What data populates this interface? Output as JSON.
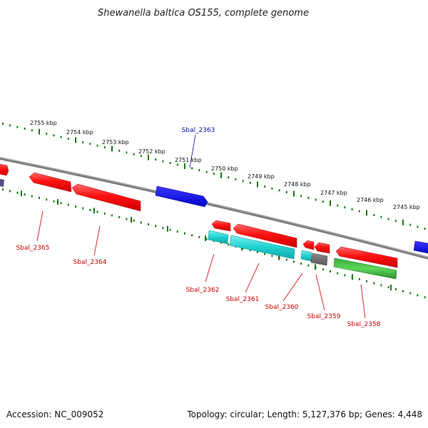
{
  "title": "Shewanella baltica OS155, complete genome",
  "footer": {
    "accession": "Accession: NC_009052",
    "topology": "Topology: circular; Length: 5,127,376 bp; Genes: 4,448"
  },
  "colors": {
    "axis": "#7a7a7a",
    "tick": "#1a7a1a",
    "forward_label": "#0a0aa0",
    "reverse_label": "#cc0000"
  },
  "ticks": [
    "2755 kbp",
    "2754 kbp",
    "2753 kbp",
    "2752 kbp",
    "2751 kbp",
    "2750 kbp",
    "2749 kbp",
    "2748 kbp",
    "2747 kbp",
    "2746 kbp",
    "2745 kbp"
  ],
  "gene_labels": {
    "sbal_2363": "Sbal_2363",
    "sbal_2365": "Sbal_2365",
    "sbal_2364": "Sbal_2364",
    "sbal_2362": "Sbal_2362",
    "sbal_2361": "Sbal_2361",
    "sbal_2360": "Sbal_2360",
    "sbal_2359": "Sbal_2359",
    "sbal_2358": "Sbal_2358"
  }
}
